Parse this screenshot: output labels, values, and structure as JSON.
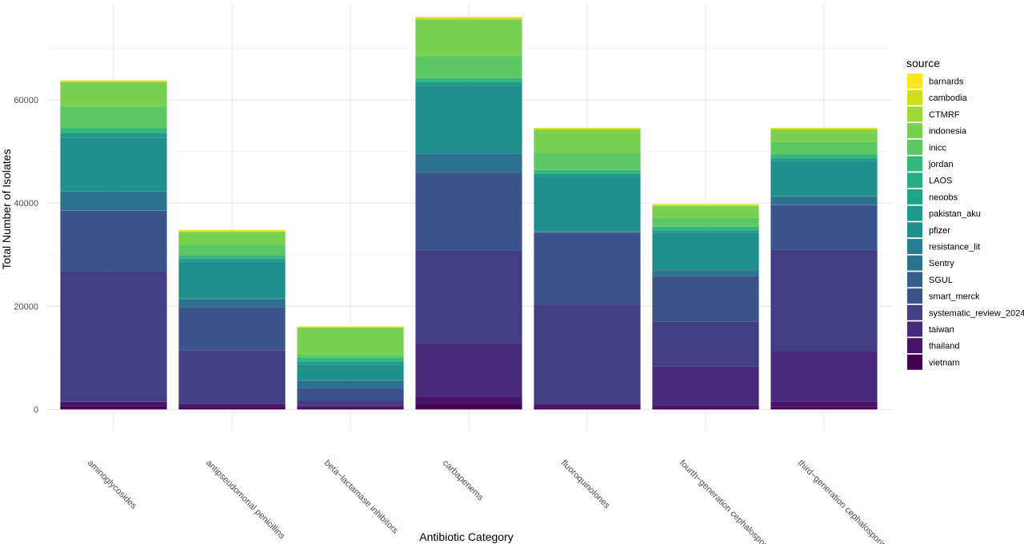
{
  "chart_data": {
    "type": "bar",
    "stacked": true,
    "xlabel": "Antibiotic Category",
    "ylabel": "Total Number of Isolates",
    "ylim": [
      0,
      76000
    ],
    "yticks": [
      0,
      20000,
      40000,
      60000
    ],
    "ytick_labels": [
      "0",
      "20000",
      "40000",
      "60000"
    ],
    "grid": true,
    "legend_title": "source",
    "legend_position": "right",
    "categories": [
      "aminoglycosides",
      "antipseudomonal penicillins",
      "beta−lactamase inhibitors",
      "carbapenems",
      "fluoroquinolones",
      "fourth−generation cephalosporins",
      "third−generation cephalosporins"
    ],
    "series": [
      {
        "name": "vietnam",
        "color": "#440154",
        "values": [
          600,
          400,
          300,
          1000,
          300,
          300,
          500
        ]
      },
      {
        "name": "thailand",
        "color": "#481467",
        "values": [
          800,
          600,
          300,
          1400,
          700,
          400,
          1000
        ]
      },
      {
        "name": "taiwan",
        "color": "#472A7A",
        "values": [
          100,
          100,
          100,
          10300,
          100,
          7700,
          9800
        ]
      },
      {
        "name": "systematic_review_2024",
        "color": "#433D84",
        "values": [
          25300,
          10400,
          1000,
          18100,
          19100,
          8600,
          19700
        ]
      },
      {
        "name": "smart_merck",
        "color": "#3B528B",
        "values": [
          11700,
          8300,
          2400,
          15100,
          14000,
          8700,
          8600
        ]
      },
      {
        "name": "SGUL",
        "color": "#345F8D",
        "values": [
          100,
          100,
          100,
          100,
          100,
          100,
          100
        ]
      },
      {
        "name": "Sentry",
        "color": "#2C728E",
        "values": [
          3600,
          1500,
          1300,
          3600,
          100,
          1200,
          1500
        ]
      },
      {
        "name": "resistance_lit",
        "color": "#287D8E",
        "values": [
          100,
          100,
          100,
          100,
          100,
          100,
          100
        ]
      },
      {
        "name": "pfizer",
        "color": "#21908C",
        "values": [
          10400,
          7100,
          3100,
          13000,
          10700,
          7100,
          6900
        ]
      },
      {
        "name": "pakistan_aku",
        "color": "#1F9A8A",
        "values": [
          800,
          500,
          500,
          700,
          400,
          400,
          400
        ]
      },
      {
        "name": "neoobs",
        "color": "#20A486",
        "values": [
          100,
          100,
          100,
          100,
          100,
          100,
          100
        ]
      },
      {
        "name": "LAOS",
        "color": "#27AD81",
        "values": [
          200,
          200,
          200,
          200,
          200,
          200,
          200
        ]
      },
      {
        "name": "jordan",
        "color": "#35B779",
        "values": [
          700,
          500,
          500,
          500,
          500,
          500,
          500
        ]
      },
      {
        "name": "inicc",
        "color": "#5CC863",
        "values": [
          4200,
          2000,
          600,
          4300,
          3300,
          1800,
          2400
        ]
      },
      {
        "name": "indonesia",
        "color": "#7AD151",
        "values": [
          4700,
          2500,
          5200,
          7100,
          4500,
          2200,
          2400
        ]
      },
      {
        "name": "CTMRF",
        "color": "#A0DA39",
        "values": [
          100,
          100,
          100,
          100,
          100,
          100,
          100
        ]
      },
      {
        "name": "cambodia",
        "color": "#D0E11C",
        "values": [
          200,
          200,
          100,
          300,
          200,
          200,
          200
        ]
      },
      {
        "name": "barnards",
        "color": "#FDE725",
        "values": [
          100,
          100,
          100,
          100,
          100,
          100,
          100
        ]
      }
    ]
  }
}
